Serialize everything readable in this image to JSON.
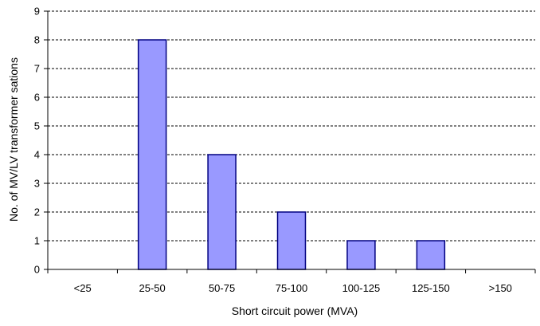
{
  "chart_data": {
    "type": "bar",
    "title": "",
    "categories": [
      "<25",
      "25-50",
      "50-75",
      "75-100",
      "100-125",
      "125-150",
      ">150"
    ],
    "values": [
      0,
      8,
      4,
      2,
      1,
      1,
      0
    ],
    "xlabel": "Short circuit power (MVA)",
    "ylabel": "No. of MV/LV transformer sations",
    "ylim": [
      0,
      9
    ],
    "yticks": [
      0,
      1,
      2,
      3,
      4,
      5,
      6,
      7,
      8,
      9
    ],
    "grid": true,
    "legend": "none",
    "colors": {
      "bar_fill": "#9999ff",
      "bar_stroke": "#000080",
      "axis": "#000000",
      "grid": "#000000"
    }
  }
}
